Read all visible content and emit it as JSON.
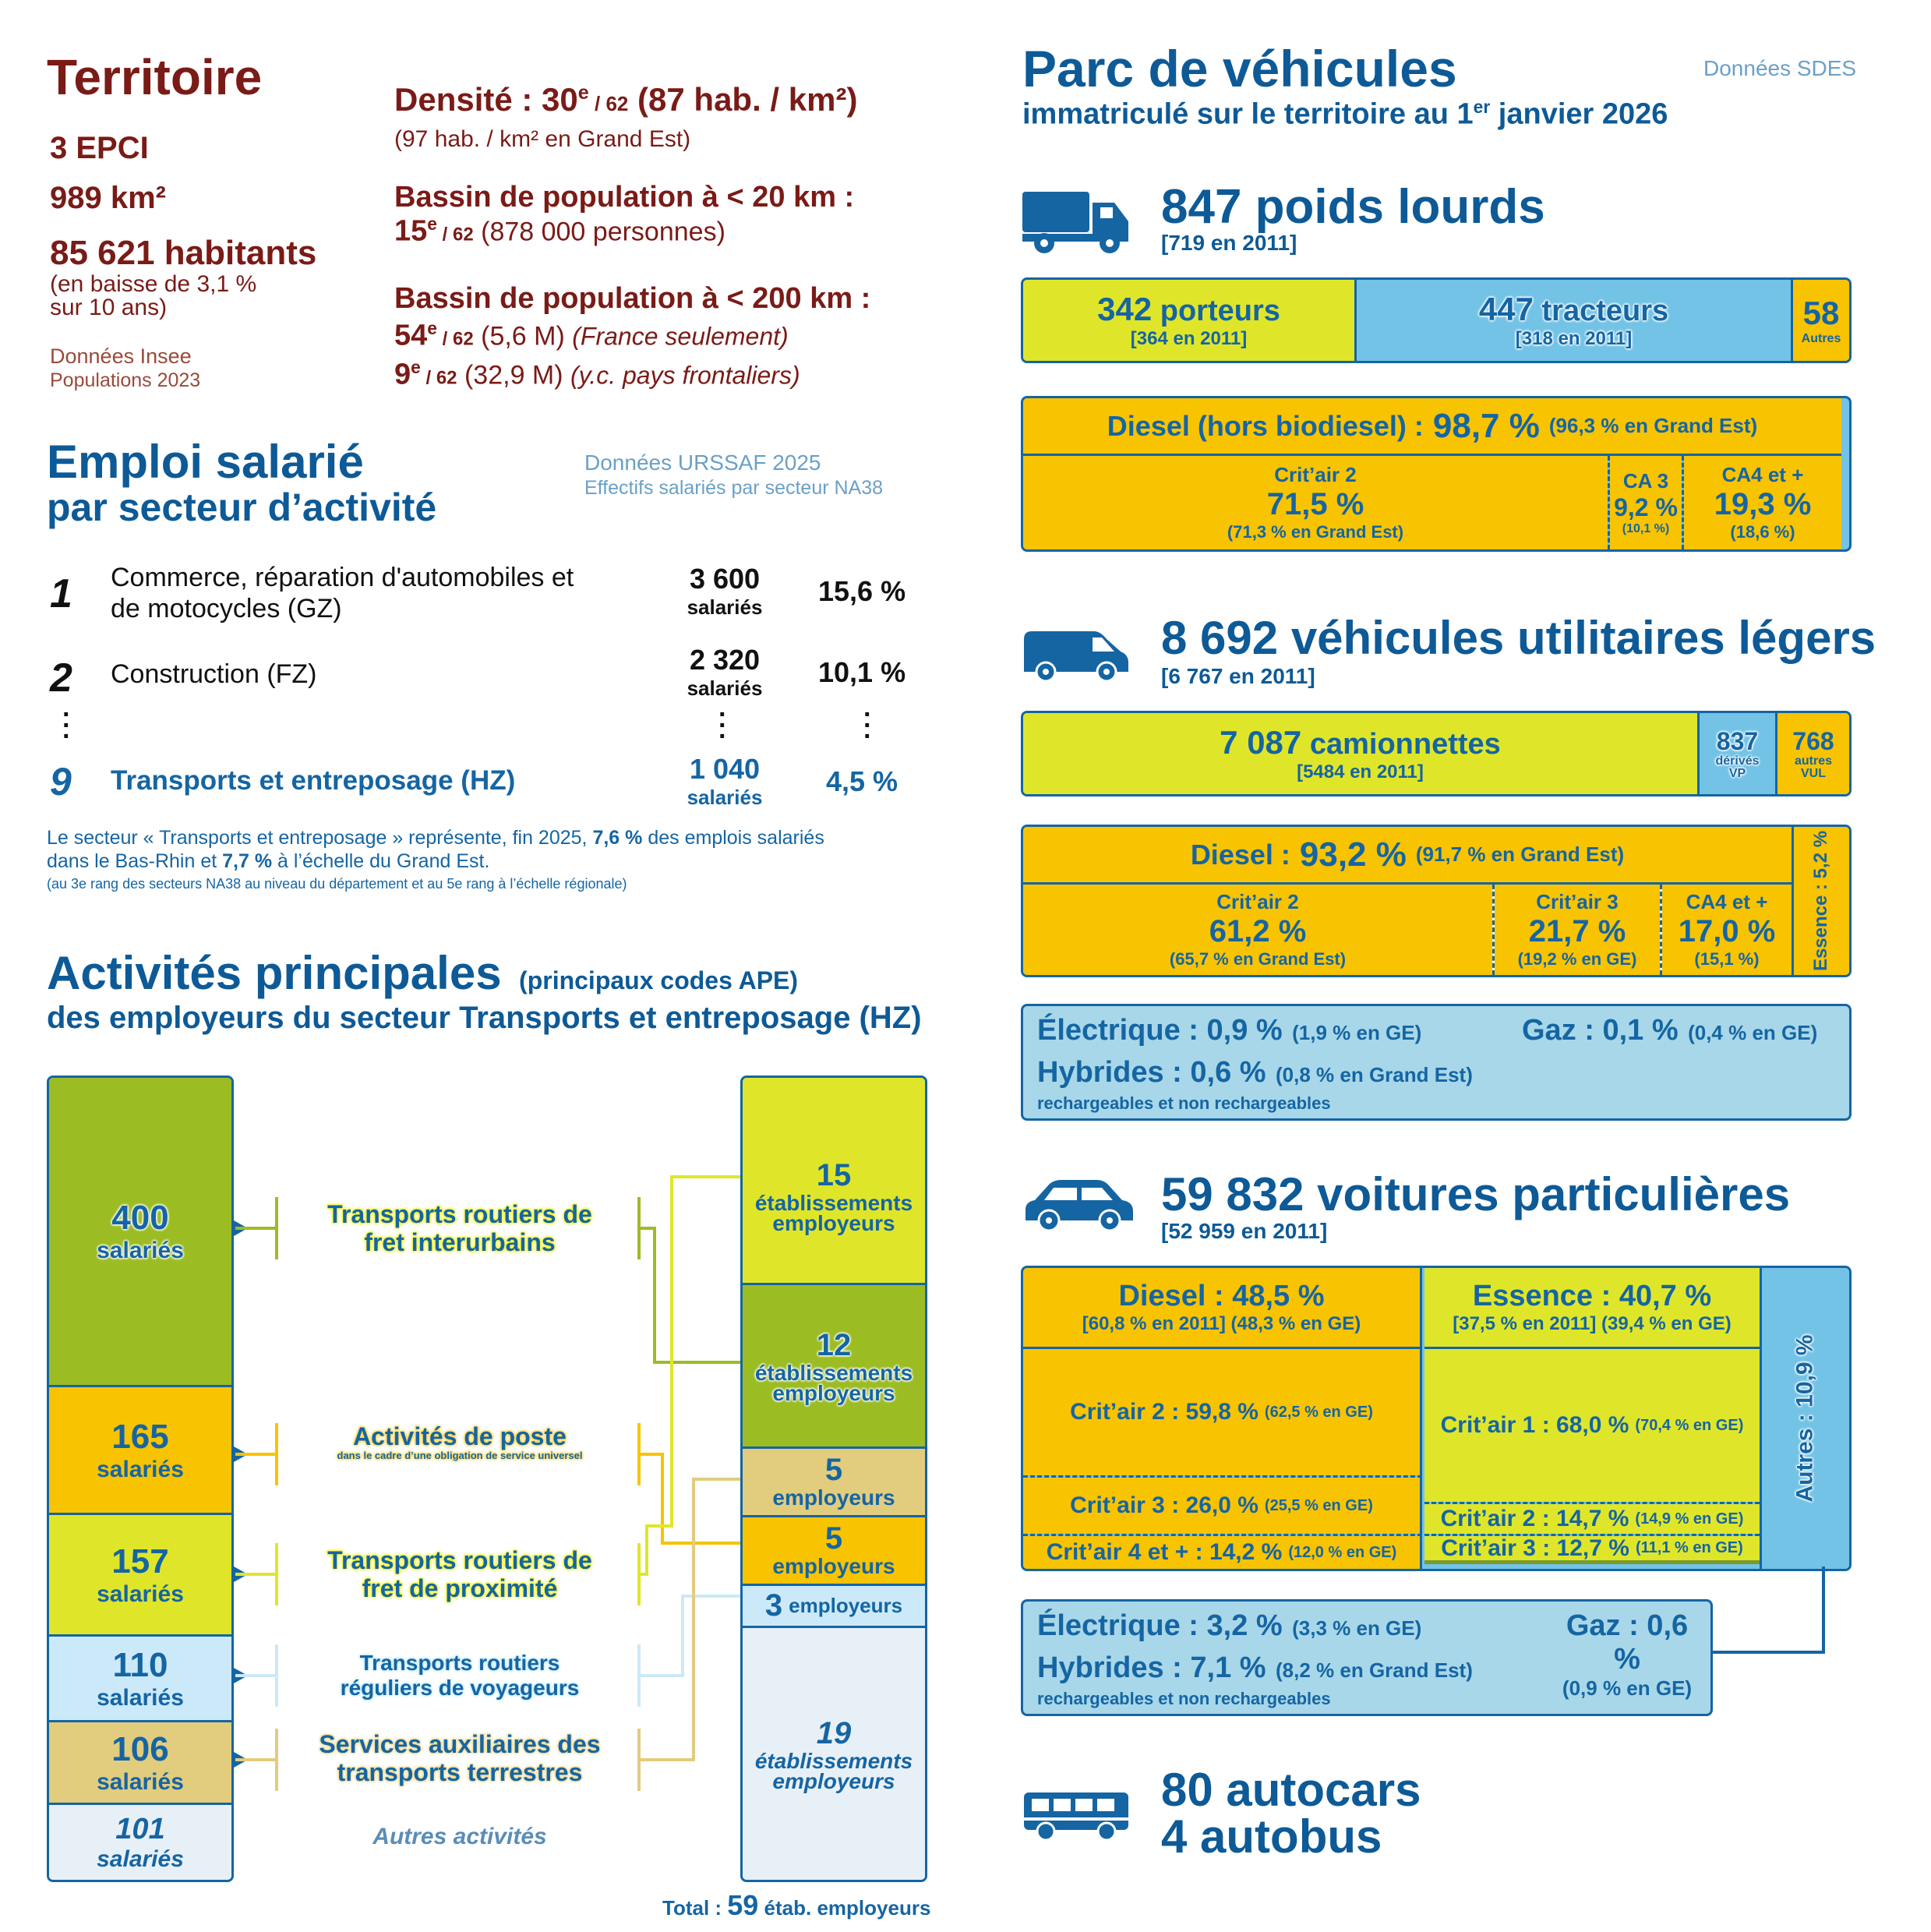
{
  "territoire": {
    "title": "Territoire",
    "epci": "3 EPCI",
    "area": "989 km²",
    "habitants": "85 621 habitants",
    "baisse1": "(en baisse de 3,1 %",
    "baisse2": "sur 10 ans)",
    "source1": "Données Insee",
    "source2": "Populations 2023",
    "densite_label": "Densité : 30",
    "densite_sup": "e",
    "densite_rank": " / 62",
    "densite_value": " (87 hab. / km²)",
    "densite_ge": "(97 hab. / km² en Grand Est)",
    "bassin20_label": "Bassin de population à < 20 km :",
    "bassin20_rank": "15",
    "bassin20_sup": "e",
    "bassin20_of": " / 62",
    "bassin20_value": " (878 000 personnes)",
    "bassin200_label": "Bassin de population à < 200 km :",
    "b200a_rank": "54",
    "b200a_sup": "e",
    "b200a_of": " / 62",
    "b200a_value": " (5,6 M) ",
    "b200a_note": "(France seulement)",
    "b200b_rank": "9",
    "b200b_sup": "e",
    "b200b_of": " / 62",
    "b200b_value": " (32,9 M) ",
    "b200b_note": "(y.c. pays frontaliers)"
  },
  "emploi": {
    "title1": "Emploi salarié",
    "title2": "par secteur d’activité",
    "source1": "Données URSSAF 2025",
    "source2": "Effectifs salariés par secteur NA38",
    "rows": [
      {
        "rank": "1",
        "label1": "Commerce, réparation d'automobiles et",
        "label2": "de motocycles (GZ)",
        "count": "3 600",
        "unit": "salariés",
        "pct": "15,6 %"
      },
      {
        "rank": "2",
        "label1": "Construction (FZ)",
        "label2": "",
        "count": "2 320",
        "unit": "salariés",
        "pct": "10,1 %"
      },
      {
        "rank": "9",
        "label1": "Transports et entreposage (HZ)",
        "label2": "",
        "count": "1 040",
        "unit": "salariés",
        "pct": "4,5 %"
      }
    ],
    "note_a": "Le secteur « Transports et entreposage » représente, fin 2025, ",
    "note_b": "7,6 %",
    "note_c": " des emplois salariés",
    "note_d": "dans le Bas-Rhin et ",
    "note_e": "7,7 %",
    "note_f": " à l’échelle du Grand Est.",
    "note_small": "(au 3e rang des secteurs NA38 au niveau du département et au 5e rang à l’échelle régionale)"
  },
  "activites": {
    "title1": "Activités principales",
    "title1b": "(principaux codes APE)",
    "title2": "des employeurs du secteur Transports et entreposage (HZ)",
    "left": [
      {
        "n": "400",
        "u": "salariés"
      },
      {
        "n": "165",
        "u": "salariés"
      },
      {
        "n": "157",
        "u": "salariés"
      },
      {
        "n": "110",
        "u": "salariés"
      },
      {
        "n": "106",
        "u": "salariés"
      },
      {
        "n": "101",
        "u": "salariés"
      }
    ],
    "labels": [
      {
        "l1": "Transports routiers de",
        "l2": "fret interurbains"
      },
      {
        "l1": "Activités de poste",
        "l2": "dans le cadre d’une obligation de service universel"
      },
      {
        "l1": "Transports routiers de",
        "l2": "fret de proximité"
      },
      {
        "l1": "Transports routiers",
        "l2": "réguliers de voyageurs"
      },
      {
        "l1": "Services auxiliaires des",
        "l2": "transports terrestres"
      }
    ],
    "other_label": "Autres activités",
    "right": [
      {
        "n": "15",
        "u1": "établissements",
        "u2": "employeurs"
      },
      {
        "n": "12",
        "u1": "établissements",
        "u2": "employeurs"
      },
      {
        "n": "5",
        "u1": "employeurs",
        "u2": ""
      },
      {
        "n": "5",
        "u1": "employeurs",
        "u2": ""
      },
      {
        "n": "3",
        "u1": "employeurs",
        "u2": ""
      },
      {
        "n": "19",
        "u1": "établissements",
        "u2": "employeurs"
      }
    ],
    "total_a": "Total : ",
    "total_n": "59",
    "total_b": " étab. employeurs"
  },
  "parc": {
    "title": "Parc de véhicules",
    "subtitle_a": "immatriculé sur le territoire au 1",
    "subtitle_sup": "er",
    "subtitle_b": " janvier 2026",
    "source": "Données SDES",
    "pl": {
      "title": "847 poids lourds",
      "prev": "[719 en 2011]",
      "porteurs_n": "342",
      "porteurs_l": "porteurs",
      "porteurs_p": "[364 en 2011]",
      "tracteurs_n": "447",
      "tracteurs_l": "tracteurs",
      "tracteurs_p": "[318 en 2011]",
      "autres_n": "58",
      "autres_l": "Autres",
      "diesel_a": "Diesel (hors biodiesel) : ",
      "diesel_b": "98,7 %",
      "diesel_c": "(96,3 % en Grand Est)",
      "c2_l": "Crit’air 2",
      "c2_v": "71,5 %",
      "c2_s": "(71,3 % en Grand Est)",
      "c3_l": "CA 3",
      "c3_v": "9,2 %",
      "c3_s": "(10,1 %)",
      "c4_l": "CA4 et +",
      "c4_v": "19,3 %",
      "c4_s": "(18,6 %)"
    },
    "vul": {
      "title": "8 692 véhicules utilitaires légers",
      "prev": "[6 767 en 2011]",
      "cam_n": "7 087",
      "cam_l": "camionnettes",
      "cam_p": "[5484 en 2011]",
      "vp_n": "837",
      "vp_l1": "dérivés",
      "vp_l2": "VP",
      "aut_n": "768",
      "aut_l1": "autres",
      "aut_l2": "VUL",
      "diesel_a": "Diesel : ",
      "diesel_b": "93,2 %",
      "diesel_c": "(91,7 % en Grand Est)",
      "essence": "Essence : 5,2 %",
      "c2_l": "Crit’air 2",
      "c2_v": "61,2 %",
      "c2_s": "(65,7 % en Grand Est)",
      "c3_l": "Crit’air 3",
      "c3_v": "21,7 %",
      "c3_s": "(19,2 % en GE)",
      "c4_l": "CA4 et +",
      "c4_v": "17,0 %",
      "c4_s": "(15,1 %)",
      "elec": "Électrique : 0,9 %",
      "elec_s": "(1,9 % en GE)",
      "gaz": "Gaz : 0,1 %",
      "gaz_s": "(0,4 % en GE)",
      "hyb": "Hybrides : 0,6 %",
      "hyb_s": "(0,8 % en Grand Est)",
      "hyb_note": "rechargeables et non rechargeables"
    },
    "vp": {
      "title": "59 832 voitures particulières",
      "prev": "[52 959 en 2011]",
      "diesel": "Diesel : 48,5 %",
      "diesel_s": "[60,8 % en 2011]   (48,3 % en GE)",
      "essence": "Essence : 40,7 %",
      "essence_s": "[37,5 % en 2011]   (39,4 % en GE)",
      "autres": "Autres : 10,9 %",
      "d_c2": "Crit’air 2 : 59,8 %",
      "d_c2_s": "(62,5 % en GE)",
      "d_c3": "Crit’air 3 : 26,0 %",
      "d_c3_s": "(25,5 % en GE)",
      "d_c4": "Crit’air 4 et + : 14,2 %",
      "d_c4_s": "(12,0 % en GE)",
      "e_c1": "Crit’air 1 : 68,0 %",
      "e_c1_s": "(70,4 % en GE)",
      "e_c2": "Crit’air 2 : 14,7 %",
      "e_c2_s": "(14,9 % en GE)",
      "e_c3": "Crit’air 3 : 12,7 %",
      "e_c3_s": "(11,1 % en GE)",
      "elec": "Électrique : 3,2 %",
      "elec_s": "(3,3 % en GE)",
      "gaz": "Gaz : 0,6 %",
      "gaz_s": "(0,9 % en GE)",
      "hyb": "Hybrides : 7,1 %",
      "hyb_s": "(8,2 % en Grand Est)",
      "hyb_note": "rechargeables et non rechargeables"
    },
    "bus": {
      "l1": "80 autocars",
      "l2": "4 autobus"
    }
  }
}
